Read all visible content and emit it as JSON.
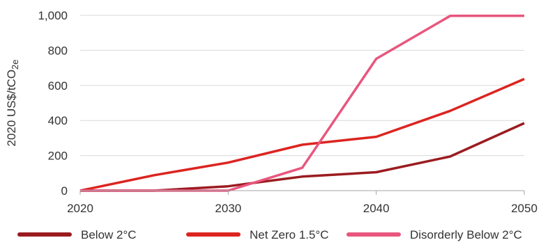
{
  "chart_data": {
    "type": "line",
    "ylabel": "2020 US$/tCO",
    "ylabel_sub": "2e",
    "x": [
      2020,
      2025,
      2030,
      2035,
      2040,
      2045,
      2050
    ],
    "x_ticks": [
      "2020",
      "2030",
      "2040",
      "2050"
    ],
    "y_ticks": [
      "0",
      "200",
      "400",
      "600",
      "800",
      "1,000"
    ],
    "xlim": [
      2020,
      2050
    ],
    "ylim": [
      0,
      1000
    ],
    "grid": "horizontal",
    "legend_position": "bottom",
    "series": [
      {
        "name": "Below 2°C",
        "color": "#9b1c20",
        "values": [
          0,
          0,
          25,
          80,
          105,
          195,
          385
        ]
      },
      {
        "name": "Net Zero 1.5°C",
        "color": "#dc2420",
        "values": [
          0,
          88,
          160,
          262,
          307,
          455,
          637
        ]
      },
      {
        "name": "Disorderly Below 2°C",
        "color": "#e8567e",
        "values": [
          0,
          0,
          0,
          130,
          752,
          997,
          997
        ]
      }
    ]
  }
}
